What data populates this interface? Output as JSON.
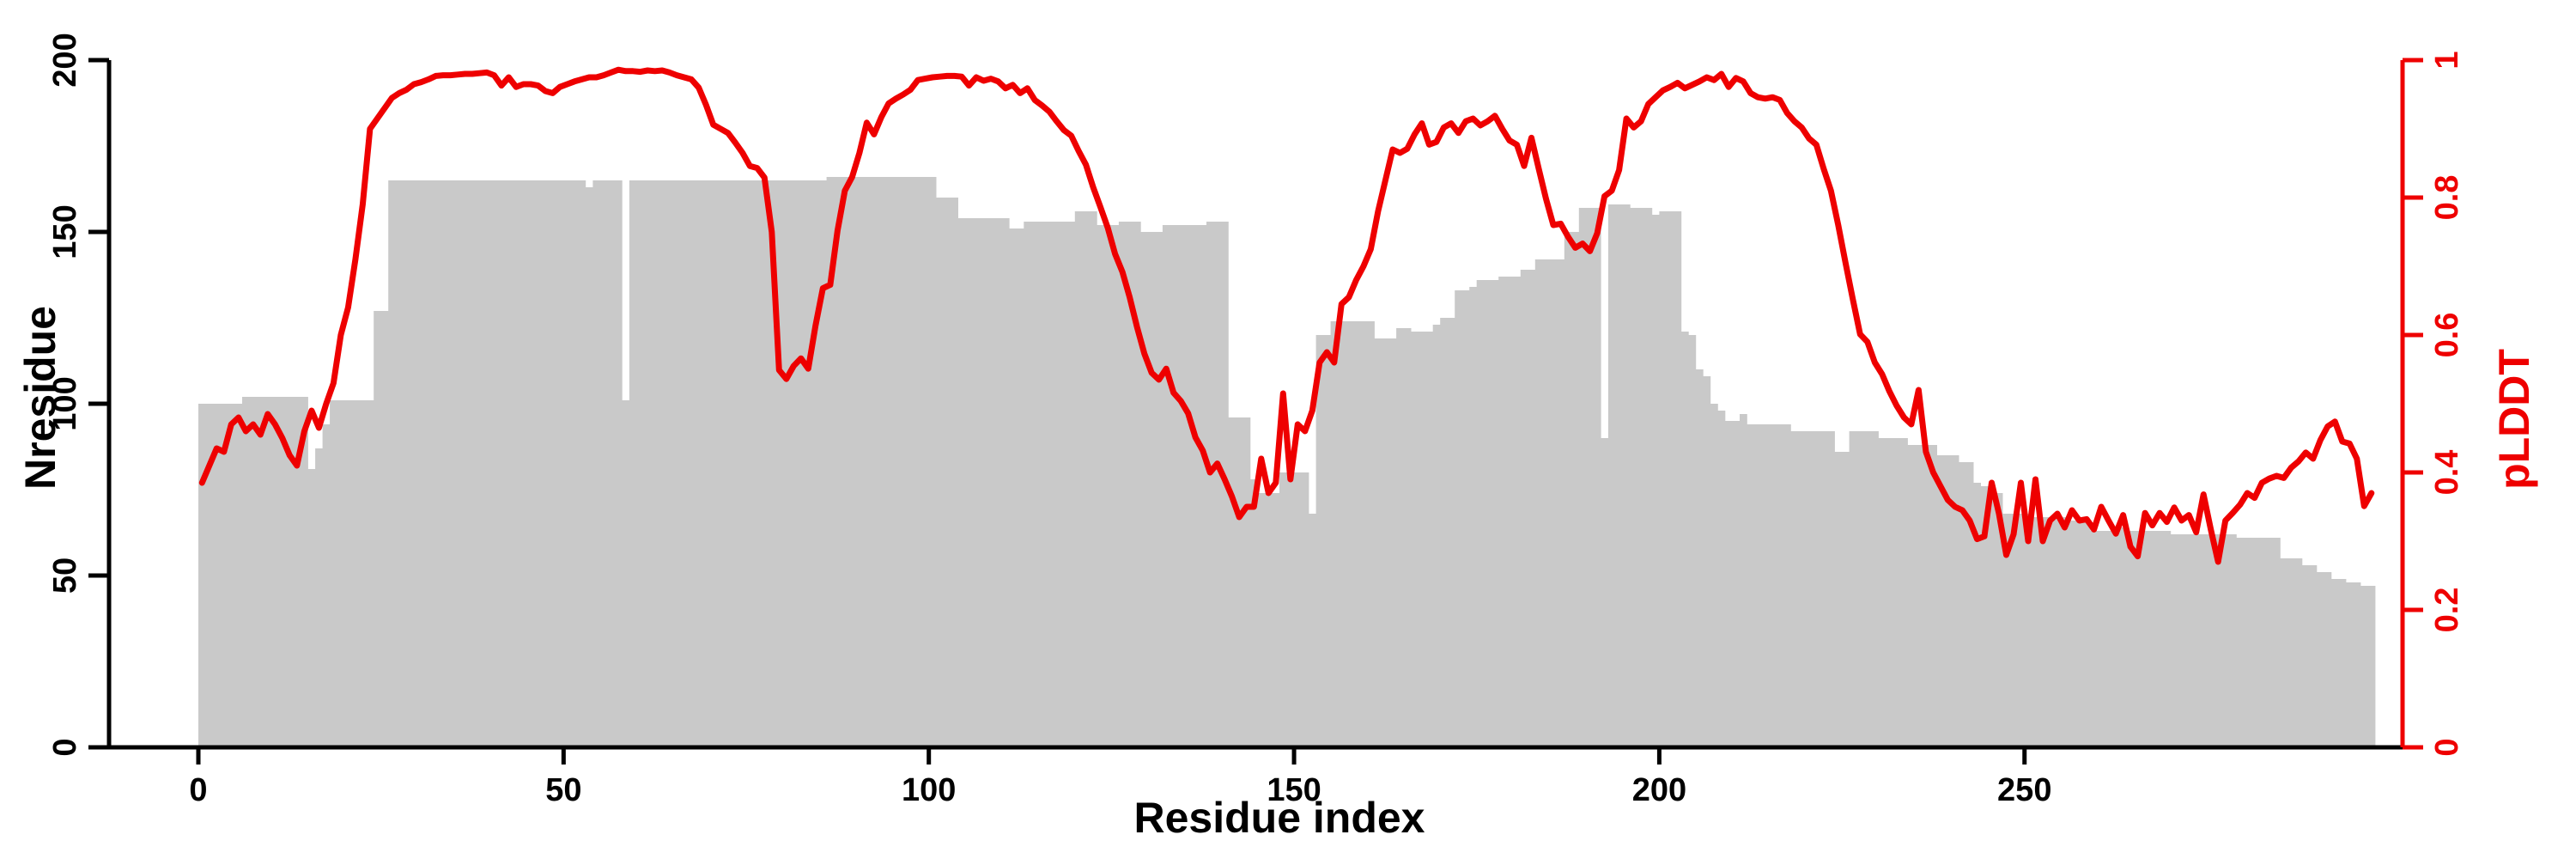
{
  "figure": {
    "background": "#ffffff",
    "bar_color": "#c9c9c9",
    "line_color": "#ee0000",
    "axis_color_left": "#000000",
    "axis_color_right": "#ee0000",
    "text_color": "#000000"
  },
  "chart_data": {
    "type": "bar+line dual axis",
    "title": "",
    "xlabel": "Residue index",
    "ylabel_left": "Nresidue",
    "ylabel_right": "pLDDT",
    "xlim": [
      0,
      298
    ],
    "ylim_left": [
      0,
      200
    ],
    "ylim_right": [
      0,
      1
    ],
    "grid": false,
    "legend": "none",
    "xticks": {
      "values": [
        0,
        50,
        100,
        150,
        200,
        250
      ],
      "labels": [
        "0",
        "50",
        "100",
        "150",
        "200",
        "250"
      ]
    },
    "yticks_left": {
      "values": [
        0,
        50,
        100,
        150,
        200
      ],
      "labels": [
        "0",
        "50",
        "100",
        "150",
        "200"
      ]
    },
    "yticks_right": {
      "values": [
        0,
        0.2,
        0.4,
        0.6,
        0.8,
        1
      ],
      "labels": [
        "0",
        "0.2",
        "0.4",
        "0.6",
        "0.8",
        "1"
      ]
    },
    "x_is_residue_index": true,
    "series": [
      {
        "name": "Nresidue",
        "type": "bar",
        "axis": "left",
        "color": "#c9c9c9",
        "values": [
          100,
          100,
          100,
          100,
          100,
          100,
          102,
          102,
          102,
          102,
          102,
          102,
          102,
          102,
          102,
          81,
          87,
          94,
          101,
          101,
          101,
          101,
          101,
          101,
          127,
          127,
          165,
          165,
          165,
          165,
          165,
          165,
          165,
          165,
          165,
          165,
          165,
          165,
          165,
          165,
          165,
          165,
          165,
          165,
          165,
          165,
          165,
          165,
          165,
          165,
          165,
          165,
          165,
          163,
          165,
          165,
          165,
          165,
          101,
          165,
          165,
          165,
          165,
          165,
          165,
          165,
          165,
          165,
          165,
          165,
          165,
          165,
          165,
          165,
          165,
          165,
          165,
          165,
          165,
          165,
          165,
          165,
          165,
          165,
          165,
          165,
          166,
          166,
          166,
          166,
          166,
          166,
          166,
          166,
          166,
          166,
          166,
          166,
          166,
          166,
          166,
          160,
          160,
          160,
          154,
          154,
          154,
          154,
          154,
          154,
          154,
          151,
          151,
          153,
          153,
          153,
          153,
          153,
          153,
          153,
          156,
          156,
          156,
          152,
          152,
          152,
          153,
          153,
          153,
          150,
          150,
          150,
          152,
          152,
          152,
          152,
          152,
          152,
          153,
          153,
          153,
          96,
          96,
          96,
          78,
          74,
          74,
          74,
          80,
          80,
          80,
          80,
          68,
          120,
          120,
          124,
          124,
          124,
          124,
          124,
          124,
          119,
          119,
          119,
          122,
          122,
          121,
          121,
          121,
          123,
          125,
          125,
          133,
          133,
          134,
          136,
          136,
          136,
          137,
          137,
          137,
          139,
          139,
          142,
          142,
          142,
          142,
          150,
          150,
          157,
          157,
          157,
          90,
          158,
          158,
          158,
          157,
          157,
          157,
          155,
          156,
          156,
          156,
          121,
          120,
          110,
          108,
          100,
          98,
          95,
          95,
          97,
          94,
          94,
          94,
          94,
          94,
          94,
          92,
          92,
          92,
          92,
          92,
          92,
          86,
          86,
          92,
          92,
          92,
          92,
          90,
          90,
          90,
          90,
          88,
          88,
          88,
          88,
          85,
          85,
          85,
          83,
          83,
          77,
          76,
          75,
          74,
          68,
          68,
          68,
          68,
          67,
          67,
          67,
          67,
          67,
          66,
          66,
          66,
          63,
          63,
          63,
          64,
          64,
          63,
          63,
          63,
          63,
          63,
          63,
          62,
          62,
          62,
          62,
          62,
          62,
          62,
          62,
          62,
          61,
          61,
          61,
          61,
          61,
          61,
          55,
          55,
          55,
          53,
          53,
          51,
          51,
          49,
          49,
          48,
          48,
          47,
          47
        ]
      },
      {
        "name": "pLDDT",
        "type": "line",
        "axis": "right",
        "color": "#ee0000",
        "values": [
          0.385,
          0.41,
          0.435,
          0.43,
          0.47,
          0.48,
          0.46,
          0.47,
          0.455,
          0.485,
          0.47,
          0.45,
          0.425,
          0.41,
          0.46,
          0.49,
          0.465,
          0.5,
          0.53,
          0.6,
          0.64,
          0.71,
          0.79,
          0.9,
          0.915,
          0.93,
          0.945,
          0.952,
          0.957,
          0.965,
          0.968,
          0.972,
          0.977,
          0.978,
          0.978,
          0.979,
          0.98,
          0.98,
          0.981,
          0.982,
          0.978,
          0.963,
          0.975,
          0.961,
          0.965,
          0.965,
          0.963,
          0.955,
          0.952,
          0.961,
          0.965,
          0.969,
          0.972,
          0.975,
          0.975,
          0.978,
          0.982,
          0.986,
          0.984,
          0.984,
          0.983,
          0.985,
          0.984,
          0.985,
          0.982,
          0.978,
          0.975,
          0.972,
          0.96,
          0.935,
          0.906,
          0.9,
          0.894,
          0.88,
          0.865,
          0.846,
          0.843,
          0.829,
          0.75,
          0.549,
          0.536,
          0.555,
          0.566,
          0.551,
          0.614,
          0.668,
          0.673,
          0.752,
          0.81,
          0.83,
          0.865,
          0.909,
          0.892,
          0.917,
          0.937,
          0.944,
          0.95,
          0.957,
          0.971,
          0.973,
          0.975,
          0.976,
          0.977,
          0.977,
          0.976,
          0.963,
          0.975,
          0.97,
          0.973,
          0.969,
          0.959,
          0.964,
          0.952,
          0.959,
          0.942,
          0.934,
          0.925,
          0.911,
          0.898,
          0.89,
          0.868,
          0.848,
          0.815,
          0.786,
          0.756,
          0.718,
          0.692,
          0.655,
          0.612,
          0.573,
          0.545,
          0.535,
          0.551,
          0.516,
          0.504,
          0.486,
          0.451,
          0.432,
          0.4,
          0.413,
          0.39,
          0.365,
          0.335,
          0.35,
          0.35,
          0.42,
          0.37,
          0.385,
          0.515,
          0.39,
          0.47,
          0.46,
          0.49,
          0.56,
          0.575,
          0.56,
          0.645,
          0.655,
          0.68,
          0.7,
          0.725,
          0.78,
          0.825,
          0.87,
          0.865,
          0.871,
          0.892,
          0.908,
          0.877,
          0.881,
          0.902,
          0.908,
          0.894,
          0.911,
          0.915,
          0.905,
          0.911,
          0.919,
          0.9,
          0.883,
          0.877,
          0.846,
          0.887,
          0.842,
          0.798,
          0.76,
          0.762,
          0.743,
          0.727,
          0.733,
          0.722,
          0.748,
          0.802,
          0.81,
          0.84,
          0.915,
          0.902,
          0.911,
          0.936,
          0.946,
          0.956,
          0.961,
          0.967,
          0.959,
          0.964,
          0.969,
          0.975,
          0.971,
          0.98,
          0.961,
          0.974,
          0.969,
          0.952,
          0.946,
          0.944,
          0.946,
          0.942,
          0.923,
          0.911,
          0.902,
          0.886,
          0.877,
          0.842,
          0.81,
          0.76,
          0.705,
          0.652,
          0.601,
          0.59,
          0.56,
          0.543,
          0.518,
          0.497,
          0.48,
          0.47,
          0.52,
          0.43,
          0.4,
          0.38,
          0.36,
          0.35,
          0.345,
          0.33,
          0.303,
          0.307,
          0.385,
          0.34,
          0.28,
          0.31,
          0.385,
          0.3,
          0.39,
          0.3,
          0.33,
          0.34,
          0.32,
          0.345,
          0.33,
          0.332,
          0.317,
          0.35,
          0.33,
          0.311,
          0.338,
          0.292,
          0.278,
          0.341,
          0.323,
          0.341,
          0.328,
          0.349,
          0.33,
          0.338,
          0.313,
          0.368,
          0.317,
          0.27,
          0.33,
          0.341,
          0.353,
          0.37,
          0.363,
          0.385,
          0.391,
          0.395,
          0.392,
          0.407,
          0.416,
          0.429,
          0.42,
          0.447,
          0.467,
          0.474,
          0.445,
          0.442,
          0.42,
          0.351,
          0.37
        ]
      }
    ]
  }
}
